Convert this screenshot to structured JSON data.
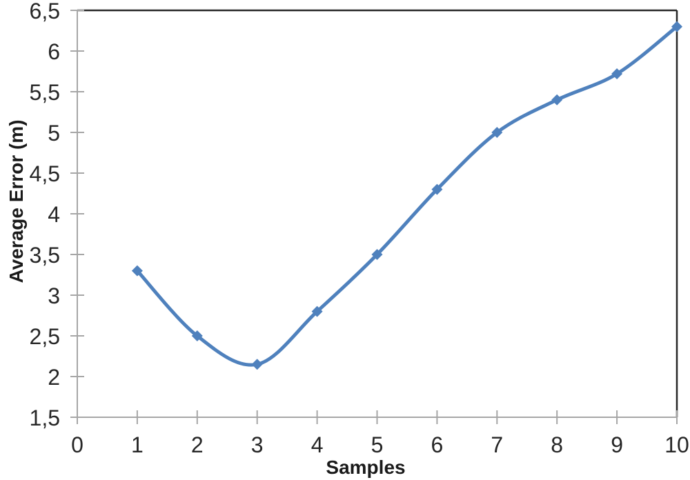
{
  "chart_data": {
    "type": "line",
    "title": "",
    "xlabel": "Samples",
    "ylabel": "Average Error (m)",
    "x": [
      1,
      2,
      3,
      4,
      5,
      6,
      7,
      8,
      9,
      10
    ],
    "series": [
      {
        "name": "Average Error",
        "values": [
          3.3,
          2.5,
          2.15,
          2.8,
          3.5,
          4.3,
          5.0,
          5.4,
          5.72,
          6.3
        ]
      }
    ],
    "xlim": [
      0,
      10
    ],
    "ylim": [
      1.5,
      6.5
    ],
    "x_tick_values": [
      0,
      1,
      2,
      3,
      4,
      5,
      6,
      7,
      8,
      9,
      10
    ],
    "x_tick_labels": [
      "0",
      "1",
      "2",
      "3",
      "4",
      "5",
      "6",
      "7",
      "8",
      "9",
      "10"
    ],
    "y_tick_values": [
      1.5,
      2,
      2.5,
      3,
      3.5,
      4,
      4.5,
      5,
      5.5,
      6,
      6.5
    ],
    "y_tick_labels": [
      "1,5",
      "2",
      "2,5",
      "3",
      "3,5",
      "4",
      "4,5",
      "5",
      "5,5",
      "6",
      "6,5"
    ],
    "decimal_separator": ",",
    "grid": "off",
    "legend": "none",
    "smooth_line": true,
    "marker": "diamond",
    "colors": {
      "series": "#4F81BD",
      "axis_line": "#A6A6A6",
      "plot_border": "#262626",
      "tick_label": "#262626",
      "axis_title": "#1a1a1a",
      "background": "#FFFFFF"
    }
  }
}
